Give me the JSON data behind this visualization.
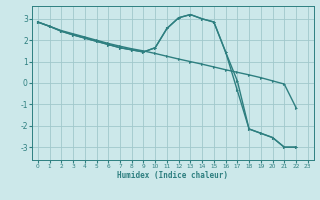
{
  "xlabel": "Humidex (Indice chaleur)",
  "xlim": [
    -0.5,
    23.5
  ],
  "ylim": [
    -3.6,
    3.6
  ],
  "yticks": [
    -3,
    -2,
    -1,
    0,
    1,
    2,
    3
  ],
  "xticks": [
    0,
    1,
    2,
    3,
    4,
    5,
    6,
    7,
    8,
    9,
    10,
    11,
    12,
    13,
    14,
    15,
    16,
    17,
    18,
    19,
    20,
    21,
    22,
    23
  ],
  "bg_color": "#cce8ea",
  "grid_color": "#a0c8cc",
  "line_color": "#2e7f80",
  "line1_x": [
    0,
    1,
    2,
    3,
    4,
    5,
    6,
    7,
    8,
    9,
    10,
    11,
    12,
    13,
    14,
    15,
    16,
    17,
    18,
    19,
    20,
    21,
    22
  ],
  "line1_y": [
    2.85,
    2.65,
    2.45,
    2.3,
    2.15,
    2.0,
    1.85,
    1.72,
    1.6,
    1.5,
    1.38,
    1.25,
    1.12,
    1.0,
    0.88,
    0.75,
    0.62,
    0.5,
    0.38,
    0.25,
    0.1,
    -0.05,
    -1.15
  ],
  "line2_x": [
    0,
    1,
    2,
    3,
    4,
    5,
    6,
    7,
    8,
    9,
    10,
    11,
    12,
    13,
    14,
    15,
    16,
    17,
    18,
    19,
    20,
    21,
    22
  ],
  "line2_y": [
    2.85,
    2.65,
    2.42,
    2.25,
    2.1,
    1.95,
    1.8,
    1.65,
    1.55,
    1.45,
    1.65,
    2.55,
    3.05,
    3.2,
    3.0,
    2.85,
    1.45,
    0.1,
    -2.15,
    -2.35,
    -2.55,
    -3.0,
    -3.0
  ],
  "line3_x": [
    0,
    1,
    2,
    3,
    4,
    5,
    6,
    7,
    8,
    9,
    10,
    11,
    12,
    13,
    14,
    15,
    16,
    17,
    18,
    19,
    20,
    21,
    22
  ],
  "line3_y": [
    2.85,
    2.65,
    2.42,
    2.25,
    2.1,
    1.95,
    1.8,
    1.65,
    1.55,
    1.45,
    1.65,
    2.55,
    3.05,
    3.2,
    3.0,
    2.85,
    1.45,
    -0.35,
    -2.15,
    -2.35,
    -2.55,
    -3.0,
    -3.0
  ]
}
